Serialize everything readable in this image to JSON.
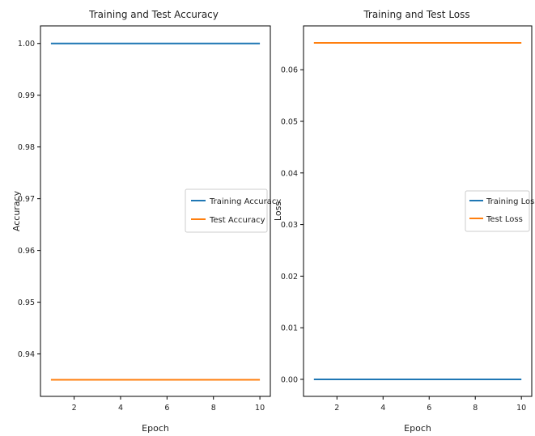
{
  "chart_data": [
    {
      "type": "line",
      "title": "Training and Test Accuracy",
      "xlabel": "Epoch",
      "ylabel": "Accuracy",
      "xlim": [
        0.55,
        10.45
      ],
      "ylim": [
        0.9318,
        1.0034
      ],
      "xticks": [
        2,
        4,
        6,
        8,
        10
      ],
      "xtick_labels": [
        "2",
        "4",
        "6",
        "8",
        "10"
      ],
      "yticks": [
        0.94,
        0.95,
        0.96,
        0.97,
        0.98,
        0.99,
        1.0
      ],
      "ytick_labels": [
        "0.94",
        "0.95",
        "0.96",
        "0.97",
        "0.98",
        "0.99",
        "1.00"
      ],
      "grid": false,
      "legend_position": "center-right",
      "x": [
        1,
        2,
        3,
        4,
        5,
        6,
        7,
        8,
        9,
        10
      ],
      "series": [
        {
          "name": "Training Accuracy",
          "color": "#1f77b4",
          "values": [
            1.0,
            1.0,
            1.0,
            1.0,
            1.0,
            1.0,
            1.0,
            1.0,
            1.0,
            1.0
          ]
        },
        {
          "name": "Test Accuracy",
          "color": "#ff7f0e",
          "values": [
            0.935,
            0.935,
            0.935,
            0.935,
            0.935,
            0.935,
            0.935,
            0.935,
            0.935,
            0.935
          ]
        }
      ]
    },
    {
      "type": "line",
      "title": "Training and Test Loss",
      "xlabel": "Epoch",
      "ylabel": "Loss",
      "xlim": [
        0.55,
        10.45
      ],
      "ylim": [
        -0.0033,
        0.0685
      ],
      "xticks": [
        2,
        4,
        6,
        8,
        10
      ],
      "xtick_labels": [
        "2",
        "4",
        "6",
        "8",
        "10"
      ],
      "yticks": [
        0.0,
        0.01,
        0.02,
        0.03,
        0.04,
        0.05,
        0.06
      ],
      "ytick_labels": [
        "0.00",
        "0.01",
        "0.02",
        "0.03",
        "0.04",
        "0.05",
        "0.06"
      ],
      "grid": false,
      "legend_position": "center-right",
      "x": [
        1,
        2,
        3,
        4,
        5,
        6,
        7,
        8,
        9,
        10
      ],
      "series": [
        {
          "name": "Training Loss",
          "color": "#1f77b4",
          "values": [
            0.0,
            0.0,
            0.0,
            0.0,
            0.0,
            0.0,
            0.0,
            0.0,
            0.0,
            0.0
          ]
        },
        {
          "name": "Test Loss",
          "color": "#ff7f0e",
          "values": [
            0.0652,
            0.0652,
            0.0652,
            0.0652,
            0.0652,
            0.0652,
            0.0652,
            0.0652,
            0.0652,
            0.0652
          ]
        }
      ]
    }
  ]
}
